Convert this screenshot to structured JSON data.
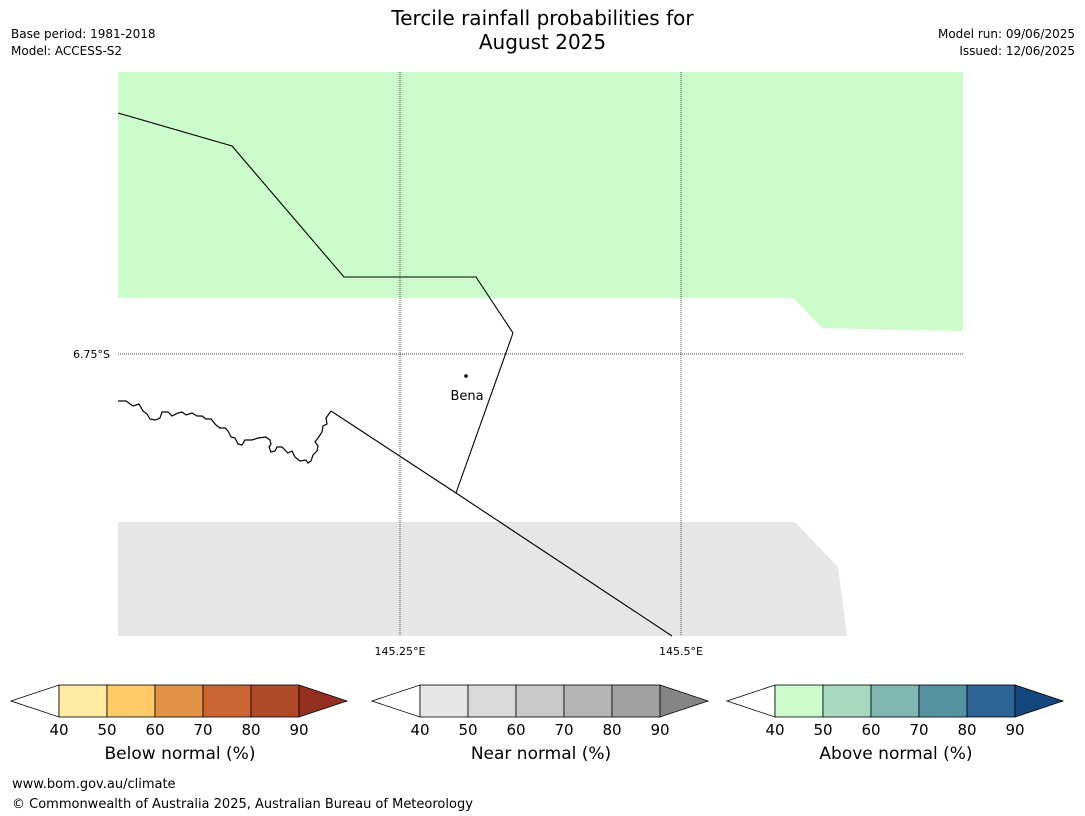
{
  "header": {
    "title_line1": "Tercile rainfall probabilities for",
    "title_line2": "August 2025",
    "base_period": "Base period: 1981-2018",
    "model": "Model: ACCESS-S2",
    "model_run": "Model run: 09/06/2025",
    "issued": "Issued: 12/06/2025"
  },
  "map": {
    "lat_label": "6.75°S",
    "lon_labels": [
      "145.25°E",
      "145.5°E"
    ],
    "town": "Bena",
    "colors": {
      "above_50_60": "#ccfccc",
      "near_40_50": "#e6e6e6",
      "land_line": "#000000"
    }
  },
  "colorbars": [
    {
      "name": "below",
      "label": "Below normal (%)",
      "ticks": [
        "40",
        "50",
        "60",
        "70",
        "80",
        "90"
      ],
      "colors": [
        "#ffffff",
        "#ffeca0",
        "#fdca66",
        "#e29346",
        "#cd6533",
        "#b04927",
        "#943020"
      ]
    },
    {
      "name": "near",
      "label": "Near normal (%)",
      "ticks": [
        "40",
        "50",
        "60",
        "70",
        "80",
        "90"
      ],
      "colors": [
        "#ffffff",
        "#e6e6e6",
        "#d9d9d9",
        "#c9c9c9",
        "#b4b4b4",
        "#a1a1a1",
        "#858585"
      ]
    },
    {
      "name": "above",
      "label": "Above normal (%)",
      "ticks": [
        "40",
        "50",
        "60",
        "70",
        "80",
        "90"
      ],
      "colors": [
        "#ffffff",
        "#ccfccc",
        "#a6d9be",
        "#7fb6b0",
        "#5693a2",
        "#2e6496",
        "#15477f"
      ]
    }
  ],
  "footer": {
    "url": "www.bom.gov.au/climate",
    "copyright": "© Commonwealth of Australia 2025, Australian Bureau of Meteorology"
  }
}
